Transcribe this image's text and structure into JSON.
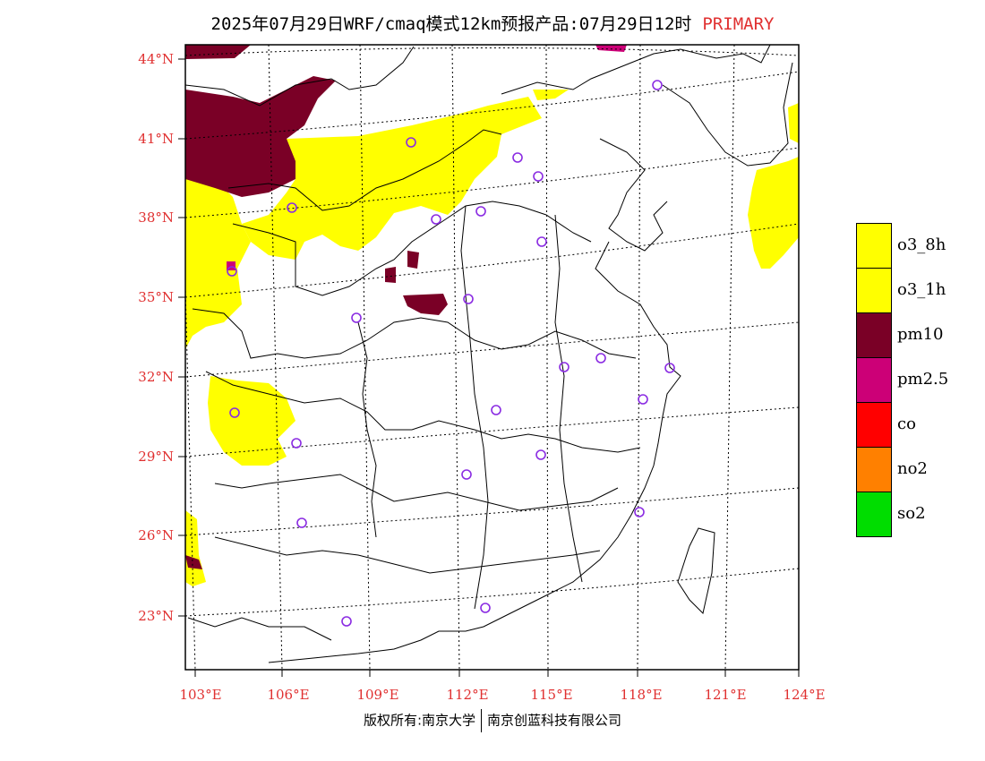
{
  "header": {
    "title": "2025年07月29日WRF/cmaq模式12km预报产品:07月29日12时",
    "badge": "PRIMARY"
  },
  "axes": {
    "lat_labels": [
      "44°N",
      "41°N",
      "38°N",
      "35°N",
      "32°N",
      "29°N",
      "26°N",
      "23°N"
    ],
    "lon_labels": [
      "103°E",
      "106°E",
      "109°E",
      "112°E",
      "115°E",
      "118°E",
      "121°E",
      "124°E"
    ]
  },
  "legend": {
    "items": [
      {
        "label": "o3_8h",
        "color": "#ffff00"
      },
      {
        "label": "o3_1h",
        "color": "#ffff00"
      },
      {
        "label": "pm10",
        "color": "#7a0026"
      },
      {
        "label": "pm2.5",
        "color": "#cc0077"
      },
      {
        "label": "co",
        "color": "#ff0000"
      },
      {
        "label": "no2",
        "color": "#ff8000"
      },
      {
        "label": "so2",
        "color": "#00dd00"
      }
    ]
  },
  "footer": {
    "left": "版权所有:南京大学",
    "right": "南京创蓝科技有限公司"
  },
  "colors": {
    "tick_label": "#e03030",
    "badge": "#e03030",
    "city_marker": "#8a2be2"
  }
}
